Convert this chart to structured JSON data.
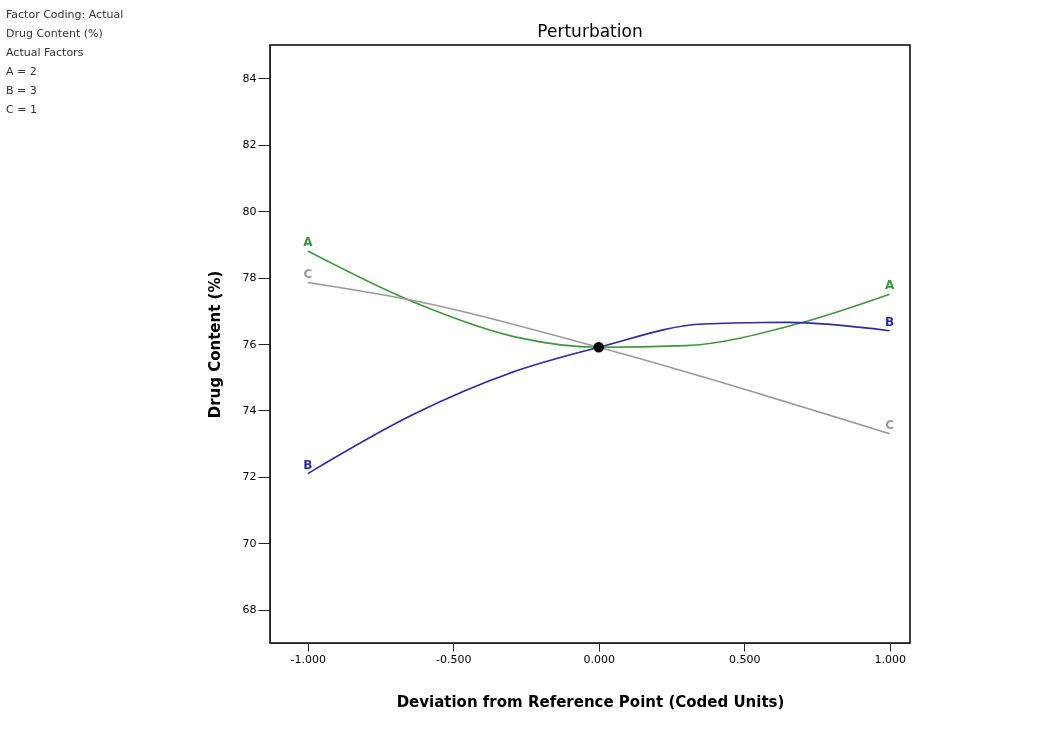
{
  "chart_data": {
    "type": "line",
    "title": "Perturbation",
    "xlabel": "Deviation from Reference Point (Coded Units)",
    "ylabel": "Drug Content (%)",
    "annotations": [
      "Factor Coding: Actual",
      "Drug Content (%)",
      "Actual Factors",
      "A = 2",
      "B = 3",
      "C = 1"
    ],
    "xlim": [
      -1.13,
      1.07
    ],
    "ylim": [
      67,
      85
    ],
    "xticks": [
      {
        "value": -1,
        "label": "-1.000"
      },
      {
        "value": -0.5,
        "label": "-0.500"
      },
      {
        "value": 0,
        "label": "0.000"
      },
      {
        "value": 0.5,
        "label": "0.500"
      },
      {
        "value": 1,
        "label": "1.000"
      }
    ],
    "yticks": [
      68,
      70,
      72,
      74,
      76,
      78,
      80,
      82,
      84
    ],
    "grid": false,
    "marker": "none",
    "line_style": "solid",
    "series": [
      {
        "name": "A",
        "color": "#3a9a3a",
        "x": [
          -1,
          -0.633,
          -0.28,
          0,
          0.297,
          0.68,
          1
        ],
        "values": [
          78.8,
          77.25,
          76.2,
          75.9,
          75.95,
          76.6,
          77.5
        ]
      },
      {
        "name": "B",
        "color": "#2a2aaa",
        "x": [
          -1,
          -0.633,
          -0.28,
          0,
          0.36,
          0.65,
          1
        ],
        "values": [
          72.1,
          73.9,
          75.2,
          75.9,
          76.6,
          76.65,
          76.4
        ]
      },
      {
        "name": "C",
        "color": "#999999",
        "x": [
          -1,
          -0.633,
          0,
          1
        ],
        "values": [
          77.85,
          77.3,
          75.9,
          73.3
        ]
      },
      {
        "type": "scatter",
        "marker": "circle",
        "color": "#000000",
        "x": [
          0
        ],
        "values": [
          75.9
        ]
      }
    ]
  }
}
